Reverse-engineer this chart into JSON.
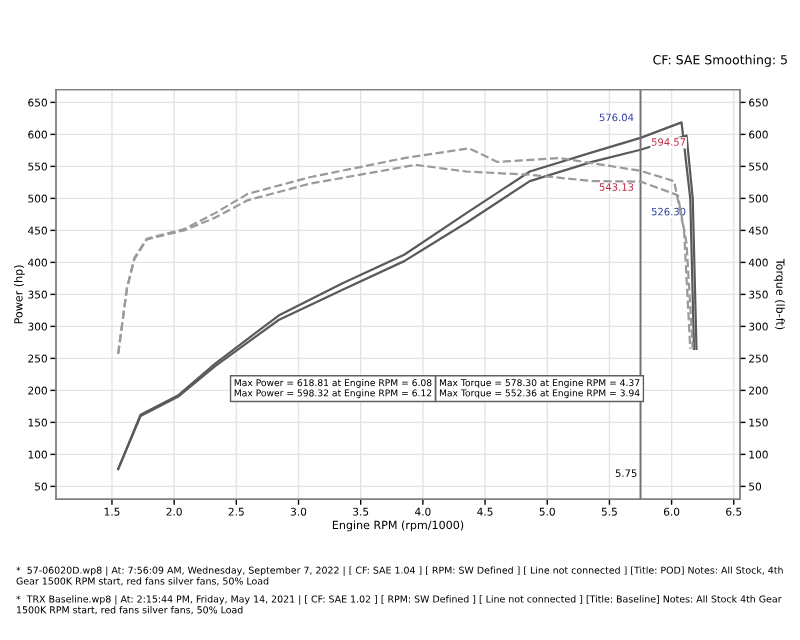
{
  "chart_data": {
    "type": "line",
    "xlabel": "Engine RPM (rpm/1000)",
    "ylabel": "Power (hp)",
    "y2label": "Torque (lb-ft)",
    "xlim": [
      1.05,
      6.55
    ],
    "xticks": [
      1.5,
      {
        "value": 2,
        "label": "2.0"
      },
      2.5,
      {
        "value": 3,
        "label": "3.0"
      },
      3.5,
      {
        "value": 4,
        "label": "4.0"
      },
      4.5,
      {
        "value": 5,
        "label": "5.0"
      },
      5.5,
      {
        "value": 6,
        "label": "6.0"
      },
      6.5
    ],
    "ylim": [
      30,
      670
    ],
    "yticks": [
      50,
      100,
      150,
      200,
      250,
      300,
      350,
      400,
      450,
      500,
      550,
      600,
      650
    ],
    "y2lim": [
      30,
      670
    ],
    "y2ticks": [
      50,
      100,
      150,
      200,
      250,
      300,
      350,
      400,
      450,
      500,
      550,
      600,
      650
    ],
    "grid": true,
    "marker": "none",
    "series": [
      {
        "color": "#5a5a5a",
        "line_style": "solid",
        "x": [
          1.55,
          1.73,
          2.03,
          2.33,
          2.84,
          3.35,
          3.85,
          4.35,
          4.86,
          5.36,
          5.75,
          6.08,
          6.15,
          6.18
        ],
        "values": [
          77,
          162,
          192,
          242,
          317,
          367,
          412,
          477,
          542,
          572,
          594.57,
          618.81,
          500,
          265
        ]
      },
      {
        "color": "#5a5a5a",
        "line_style": "solid",
        "x": [
          1.55,
          1.73,
          2.03,
          2.33,
          2.84,
          3.35,
          3.85,
          4.35,
          4.86,
          5.36,
          5.75,
          6.12,
          6.17,
          6.2
        ],
        "values": [
          77,
          160,
          190,
          238,
          310,
          357,
          402,
          462,
          527,
          557,
          576.04,
          598.32,
          500,
          265
        ]
      },
      {
        "color": "#9a9a9a",
        "line_style": "dashed",
        "axis": "y2",
        "x": [
          1.55,
          1.62,
          1.68,
          1.78,
          2.08,
          2.33,
          2.59,
          3.09,
          3.85,
          4.37,
          4.6,
          5.1,
          5.75,
          6.02,
          6.1,
          6.15
        ],
        "values": [
          257,
          360,
          407,
          437,
          452,
          477,
          507,
          533,
          563,
          578.3,
          557,
          563,
          543.13,
          527,
          450,
          265
        ]
      },
      {
        "color": "#9a9a9a",
        "line_style": "dashed",
        "axis": "y2",
        "x": [
          1.55,
          1.62,
          1.68,
          1.78,
          2.08,
          2.33,
          2.59,
          3.09,
          3.94,
          4.35,
          4.86,
          5.36,
          5.75,
          6.05,
          6.12,
          6.17
        ],
        "values": [
          257,
          358,
          405,
          436,
          450,
          470,
          497,
          523,
          552.36,
          542,
          537,
          527,
          526.3,
          505,
          430,
          265
        ]
      }
    ],
    "ref_lines": [
      {
        "axis": "x",
        "value": 5.75,
        "label": "5.75",
        "color": "#707070"
      }
    ],
    "annotations": [
      "CF: SAE Smoothing: 5",
      "Max Power = 618.81 at Engine RPM = 6.08",
      "Max Power = 598.32 at Engine RPM = 6.12",
      "Max Torque = 578.30 at Engine RPM = 4.37",
      "Max Torque = 552.36 at Engine RPM = 3.94",
      "*  57-06020D.wp8 | At: 7:56:09 AM, Wednesday, September 7, 2022 | [ CF: SAE 1.04 ] [ RPM: SW Defined ] [ Line not connected ] [Title: POD] Notes: All Stock, 4th Gear 1500K RPM start, red fans silver fans, 50% Load",
      "*  TRX Baseline.wp8 | At: 2:15:44 PM, Friday, May 14, 2021 | [ CF: SAE 1.02 ] [ RPM: SW Defined ] [ Line not connected ] [Title: Baseline] Notes: All Stock 4th Gear 1500K RPM start, red fans silver fans, 50% Load",
      "594.57",
      "576.04",
      "543.13",
      "526.30"
    ]
  }
}
